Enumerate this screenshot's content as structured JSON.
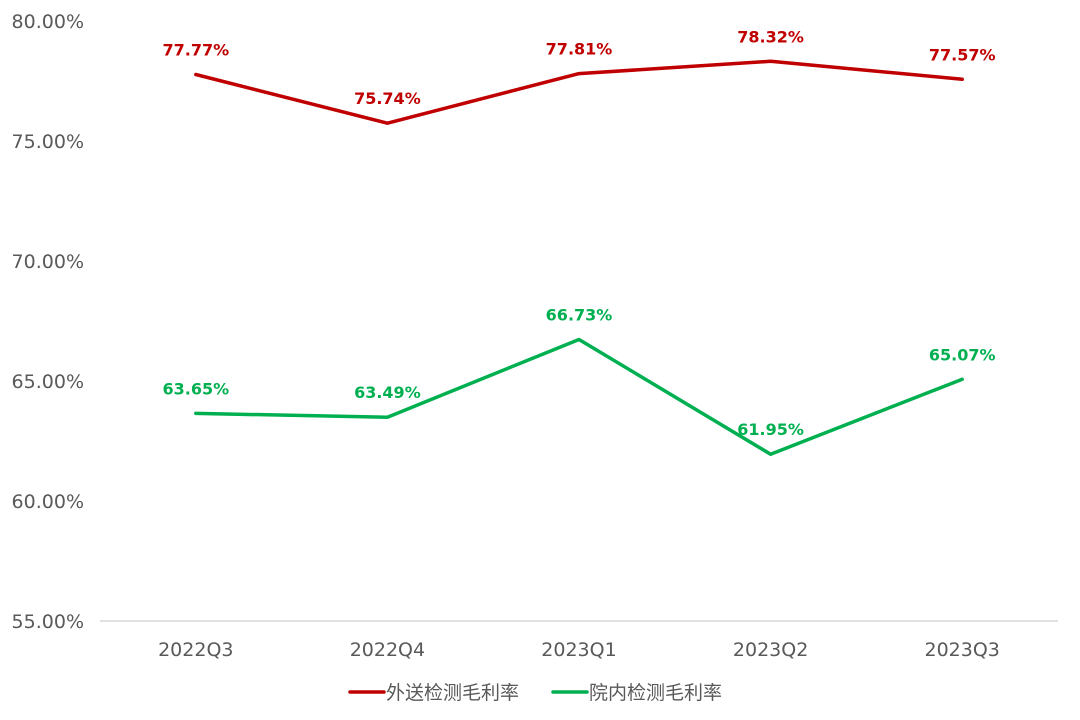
{
  "chart_data": {
    "type": "line",
    "categories": [
      "2022Q3",
      "2022Q4",
      "2023Q1",
      "2023Q2",
      "2023Q3"
    ],
    "ylim": [
      55,
      80
    ],
    "yticks": [
      55,
      60,
      65,
      70,
      75,
      80
    ],
    "ytick_labels": [
      "55.00%",
      "60.00%",
      "65.00%",
      "70.00%",
      "75.00%",
      "80.00%"
    ],
    "grid": false,
    "legend_position": "bottom",
    "series": [
      {
        "name": "外送检测毛利率",
        "color": "#c00000",
        "values": [
          77.77,
          75.74,
          77.81,
          78.32,
          77.57
        ],
        "labels": [
          "77.77%",
          "75.74%",
          "77.81%",
          "78.32%",
          "77.57%"
        ]
      },
      {
        "name": "院内检测毛利率",
        "color": "#00b050",
        "values": [
          63.65,
          63.49,
          66.73,
          61.95,
          65.07
        ],
        "labels": [
          "63.65%",
          "63.49%",
          "66.73%",
          "61.95%",
          "65.07%"
        ]
      }
    ]
  }
}
